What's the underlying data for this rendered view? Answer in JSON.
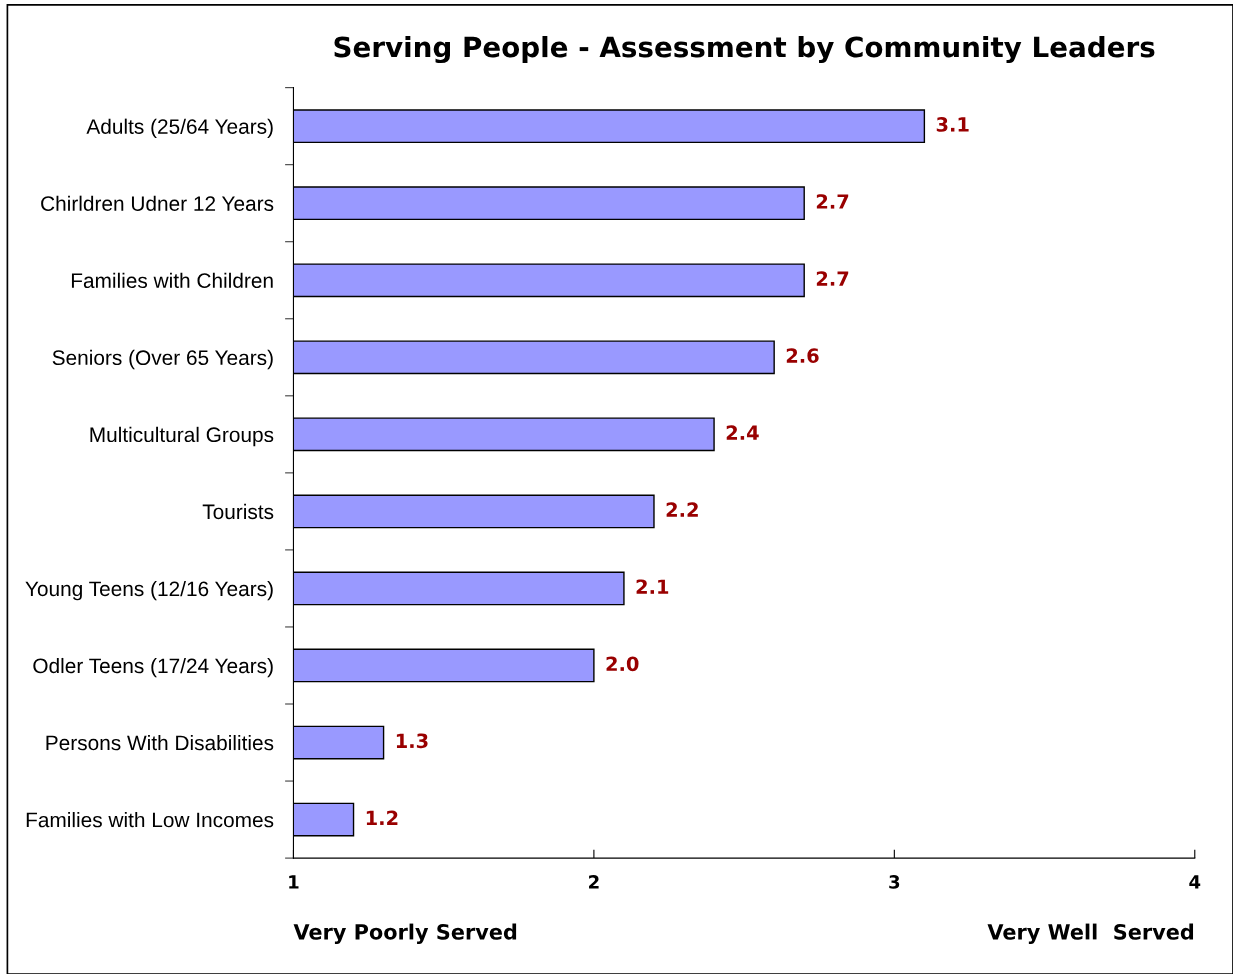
{
  "chart_data": {
    "type": "bar",
    "orientation": "horizontal",
    "title": "Serving People - Assessment by Community Leaders",
    "categories": [
      "Adults (25/64 Years)",
      "Chirldren Udner 12 Years",
      "Families with Children",
      "Seniors (Over 65 Years)",
      "Multicultural Groups",
      "Tourists",
      "Young Teens (12/16 Years)",
      "Odler Teens (17/24 Years)",
      "Persons With Disabilities",
      "Families with Low Incomes"
    ],
    "values": [
      3.1,
      2.7,
      2.7,
      2.6,
      2.4,
      2.2,
      2.1,
      2.0,
      1.3,
      1.2
    ],
    "value_labels": [
      "3.1",
      "2.7",
      "2.7",
      "2.6",
      "2.4",
      "2.2",
      "2.1",
      "2.0",
      "1.3",
      "1.2"
    ],
    "color": "#9999ff",
    "xlim": [
      1,
      4
    ],
    "xticks": [
      1,
      2,
      3,
      4
    ],
    "grid": false,
    "legend": false,
    "annotations": [
      "Very Poorly Served",
      "Very Well  Served"
    ]
  }
}
